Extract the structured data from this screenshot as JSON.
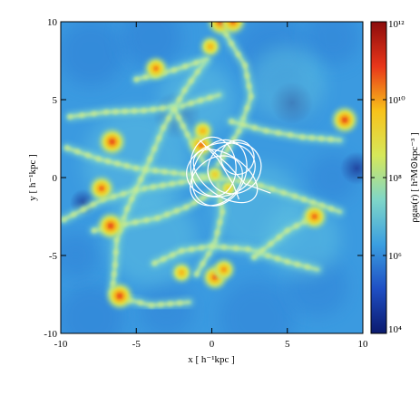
{
  "chart_data": {
    "type": "heatmap",
    "title": "",
    "xlabel": "x [ h⁻¹kpc ]",
    "ylabel": "y [ h⁻¹kpc ]",
    "xlim": [
      -10,
      10
    ],
    "ylim": [
      -10,
      10
    ],
    "xticks": [
      "-10",
      "-5",
      "0",
      "5",
      "10"
    ],
    "yticks": [
      "-10",
      "-5",
      "0",
      "5",
      "10"
    ],
    "colorbar": {
      "label": "ρgas(r) [ h²M⊙kpc⁻³ ]",
      "scale": "log",
      "range": [
        10000,
        1000000000000
      ],
      "ticks": [
        {
          "value": 10000,
          "label": "10⁴"
        },
        {
          "value": 1000000,
          "label": "10⁶"
        },
        {
          "value": 100000000,
          "label": "10⁸"
        },
        {
          "value": 10000000000,
          "label": "10¹⁰"
        },
        {
          "value": 1000000000000,
          "label": "10¹²"
        }
      ],
      "colormap": [
        "#0b1a6e",
        "#1f4fc4",
        "#3b9fe0",
        "#7fd6c8",
        "#d6e85a",
        "#f8c21a",
        "#e8361a",
        "#8c0c0c"
      ]
    },
    "grid": false,
    "legend": "none",
    "clumps": [
      {
        "x": -6.6,
        "y": 2.3,
        "density": 100000000000.0
      },
      {
        "x": -6.7,
        "y": -3.1,
        "density": 100000000000.0
      },
      {
        "x": -6.1,
        "y": -7.6,
        "density": 100000000000.0
      },
      {
        "x": 8.8,
        "y": 3.7,
        "density": 100000000000.0
      },
      {
        "x": 6.8,
        "y": -2.5,
        "density": 50000000000.0
      },
      {
        "x": -3.7,
        "y": 7.0,
        "density": 30000000000.0
      },
      {
        "x": 0.6,
        "y": 10.0,
        "density": 100000000000.0
      },
      {
        "x": 1.4,
        "y": 10.0,
        "density": 50000000000.0
      },
      {
        "x": -0.1,
        "y": 8.4,
        "density": 10000000000.0
      },
      {
        "x": -0.7,
        "y": 2.1,
        "density": 50000000000.0
      },
      {
        "x": 0.2,
        "y": 0.2,
        "density": 3000000000.0
      },
      {
        "x": 0.2,
        "y": -6.4,
        "density": 50000000000.0
      },
      {
        "x": 0.8,
        "y": -5.9,
        "density": 20000000000.0
      },
      {
        "x": -2.0,
        "y": -6.1,
        "density": 10000000000.0
      },
      {
        "x": -7.3,
        "y": -0.7,
        "density": 50000000000.0
      },
      {
        "x": -0.6,
        "y": 3.0,
        "density": 10000000000.0
      },
      {
        "x": 1.1,
        "y": -0.7,
        "density": 3000000000.0
      }
    ],
    "filaments": [
      [
        [
          -9.6,
          1.9
        ],
        [
          -7.5,
          1.2
        ],
        [
          -5.0,
          0.6
        ],
        [
          -2.5,
          0.3
        ],
        [
          0.0,
          0.0
        ],
        [
          2.5,
          -0.3
        ],
        [
          5.5,
          -1.2
        ],
        [
          8.5,
          -2.2
        ]
      ],
      [
        [
          -9.8,
          -2.7
        ],
        [
          -7.2,
          -1.4
        ],
        [
          -4.5,
          -0.7
        ],
        [
          -2.0,
          -0.3
        ],
        [
          0.2,
          0.1
        ]
      ],
      [
        [
          -9.4,
          3.9
        ],
        [
          -7.0,
          4.2
        ],
        [
          -4.5,
          4.3
        ],
        [
          -2.0,
          4.6
        ],
        [
          0.5,
          5.3
        ]
      ],
      [
        [
          -6.6,
          -7.4
        ],
        [
          -6.4,
          -5.6
        ],
        [
          -6.3,
          -4.0
        ],
        [
          -5.6,
          -2.0
        ],
        [
          -4.4,
          0.5
        ],
        [
          -3.2,
          3.2
        ],
        [
          -1.8,
          5.6
        ],
        [
          -0.5,
          7.4
        ]
      ],
      [
        [
          0.6,
          9.8
        ],
        [
          1.3,
          8.6
        ],
        [
          2.2,
          7.2
        ],
        [
          2.6,
          5.2
        ],
        [
          1.8,
          3.0
        ],
        [
          0.4,
          0.8
        ]
      ],
      [
        [
          -7.8,
          -3.4
        ],
        [
          -5.8,
          -3.0
        ],
        [
          -3.6,
          -2.6
        ],
        [
          -1.7,
          -1.9
        ],
        [
          0.0,
          -1.0
        ]
      ],
      [
        [
          -1.0,
          -6.2
        ],
        [
          0.2,
          -4.2
        ],
        [
          0.7,
          -2.2
        ],
        [
          0.4,
          -0.4
        ]
      ],
      [
        [
          -3.8,
          -5.5
        ],
        [
          -2.0,
          -4.7
        ],
        [
          0.0,
          -4.4
        ],
        [
          2.4,
          -4.6
        ],
        [
          5.0,
          -5.4
        ],
        [
          7.0,
          -5.9
        ]
      ],
      [
        [
          1.3,
          3.6
        ],
        [
          3.6,
          3.0
        ],
        [
          6.0,
          2.6
        ],
        [
          8.5,
          2.4
        ]
      ],
      [
        [
          -2.5,
          4.4
        ],
        [
          -1.3,
          2.2
        ],
        [
          -0.5,
          0.9
        ]
      ],
      [
        [
          2.8,
          -5.1
        ],
        [
          5.0,
          -3.4
        ],
        [
          6.8,
          -2.5
        ]
      ],
      [
        [
          -6.2,
          -7.7
        ],
        [
          -4.0,
          -8.2
        ],
        [
          -1.5,
          -8.0
        ]
      ],
      [
        [
          -5.0,
          6.3
        ],
        [
          -2.5,
          6.9
        ],
        [
          -0.3,
          7.6
        ]
      ]
    ],
    "contours": [
      {
        "cx": 0.6,
        "cy": 0.5,
        "rx": 2.3,
        "ry": 1.7,
        "rot": 15
      },
      {
        "cx": 0.5,
        "cy": 0.3,
        "rx": 1.7,
        "ry": 2.2,
        "rot": -25
      },
      {
        "cx": 1.5,
        "cy": 0.6,
        "rx": 1.8,
        "ry": 1.6,
        "rot": 30
      },
      {
        "cx": 0.1,
        "cy": 0.7,
        "rx": 1.5,
        "ry": 1.9,
        "rot": 5
      },
      {
        "cx": 0.9,
        "cy": 0.1,
        "rx": 2.4,
        "ry": 1.3,
        "rot": -35
      },
      {
        "cx": 1.7,
        "cy": 1.3,
        "rx": 1.1,
        "ry": 1.1,
        "rot": 0
      },
      {
        "cx": 0.3,
        "cy": -0.2,
        "rx": 1.9,
        "ry": 1.4,
        "rot": 40
      }
    ],
    "contour_lines": [
      [
        [
          -0.8,
          2.4
        ],
        [
          0.4,
          1.2
        ],
        [
          1.4,
          -0.4
        ],
        [
          1.8,
          -1.4
        ]
      ],
      [
        [
          -0.3,
          2.0
        ],
        [
          1.1,
          0.8
        ],
        [
          2.2,
          -0.4
        ],
        [
          3.9,
          -1.0
        ]
      ]
    ]
  }
}
